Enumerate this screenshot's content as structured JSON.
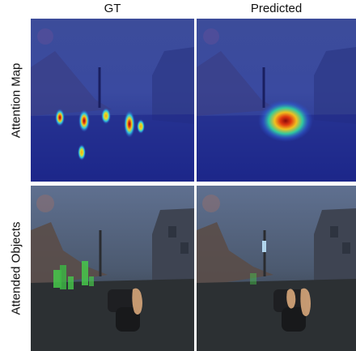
{
  "columns": [
    {
      "title": "GT"
    },
    {
      "title": "Predicted"
    }
  ],
  "rows": [
    {
      "label": "Attention Map"
    },
    {
      "label": "Attended Objects"
    }
  ],
  "colors": {
    "attention_tint": "#2a37a8",
    "dusk_sky": "#6f7fa8",
    "road": "#2c3033",
    "object_green": "#46c84a",
    "object_tan": "#d7a67a",
    "object_cyan": "#bfe6ff"
  }
}
